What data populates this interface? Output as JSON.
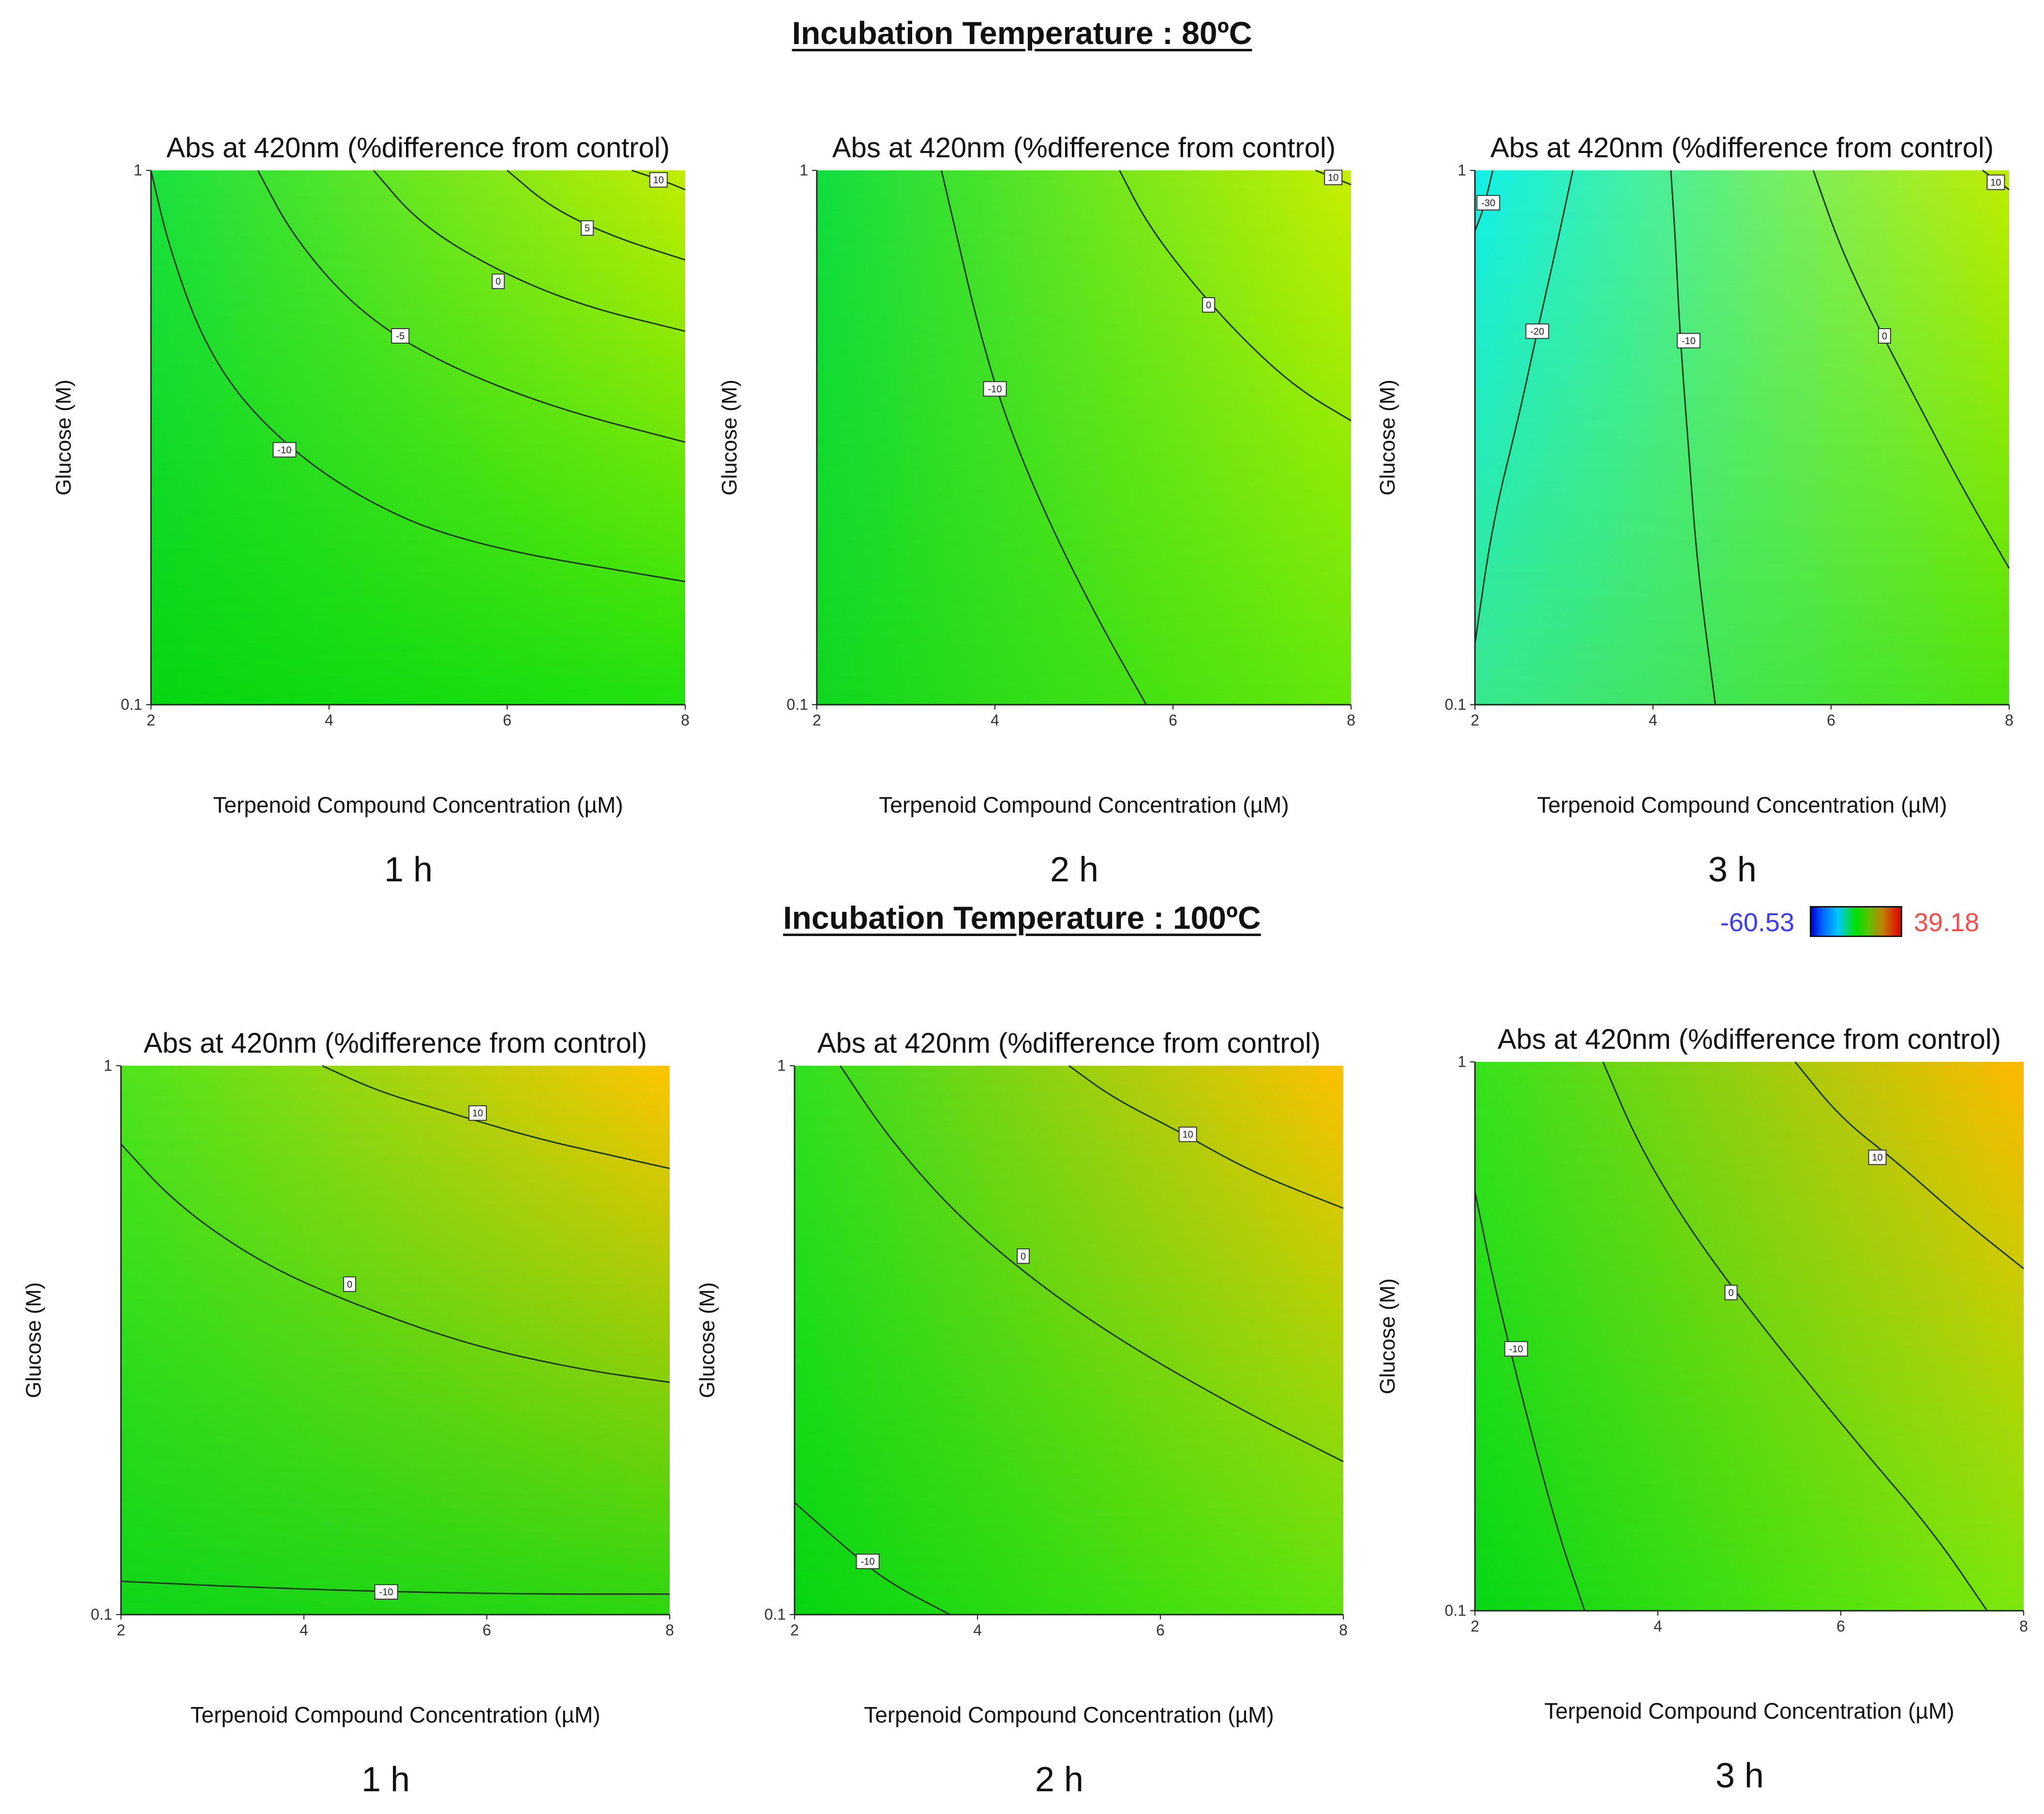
{
  "sections": [
    {
      "title": "Incubation Temperature : 80ºC"
    },
    {
      "title": "Incubation Temperature : 100ºC"
    }
  ],
  "legend": {
    "min_label": "-60.53",
    "max_label": "39.18",
    "min_value": -60.53,
    "max_value": 39.18,
    "colors": {
      "low": "#0000d6",
      "mid": "#00e000",
      "high": "#e00000"
    }
  },
  "chart_data": [
    {
      "type": "contour",
      "title": "Abs at 420nm (%difference from control)",
      "xlabel": "Terpenoid Compound Concentration (µM)",
      "ylabel": "Glucose (M)",
      "x_ticks": [
        "2",
        "4",
        "6",
        "8"
      ],
      "y_ticks": [
        "1",
        "0.1"
      ],
      "xlim": [
        2,
        8
      ],
      "ylim": [
        0.1,
        1
      ],
      "caption": "1 h",
      "temperature": "80ºC",
      "corner_colors": {
        "top_left": "#19e040",
        "top_right": "#c2ec00",
        "bottom_left": "#06d612",
        "bottom_right": "#22e20e"
      },
      "contours": [
        {
          "level": -10,
          "label": "-10",
          "points": [
            [
              2,
              1
            ],
            [
              2.2,
              0.72
            ],
            [
              2.6,
              0.47
            ],
            [
              3.2,
              0.34
            ],
            [
              4.2,
              0.25
            ],
            [
              5.5,
              0.2
            ],
            [
              8,
              0.17
            ]
          ],
          "label_at": [
            3.5,
            0.3
          ]
        },
        {
          "level": -5,
          "label": "-5",
          "points": [
            [
              3.2,
              1
            ],
            [
              3.6,
              0.75
            ],
            [
              4.3,
              0.55
            ],
            [
              5.2,
              0.44
            ],
            [
              6.5,
              0.36
            ],
            [
              8,
              0.31
            ]
          ],
          "label_at": [
            4.8,
            0.49
          ]
        },
        {
          "level": 0,
          "label": "0",
          "points": [
            [
              4.5,
              1
            ],
            [
              5.0,
              0.8
            ],
            [
              5.8,
              0.66
            ],
            [
              6.8,
              0.56
            ],
            [
              8,
              0.5
            ]
          ],
          "label_at": [
            5.9,
            0.62
          ]
        },
        {
          "level": 5,
          "label": "5",
          "points": [
            [
              6.0,
              1
            ],
            [
              6.5,
              0.85
            ],
            [
              7.2,
              0.75
            ],
            [
              8,
              0.68
            ]
          ],
          "label_at": [
            6.9,
            0.78
          ]
        },
        {
          "level": 10,
          "label": "10",
          "points": [
            [
              7.4,
              1
            ],
            [
              7.8,
              0.95
            ],
            [
              8,
              0.92
            ]
          ],
          "label_at": [
            7.7,
            0.96
          ]
        }
      ]
    },
    {
      "type": "contour",
      "title": "Abs at 420nm (%difference from control)",
      "xlabel": "Terpenoid Compound Concentration (µM)",
      "ylabel": "Glucose (M)",
      "x_ticks": [
        "2",
        "4",
        "6",
        "8"
      ],
      "y_ticks": [
        "1",
        "0.1"
      ],
      "xlim": [
        2,
        8
      ],
      "ylim": [
        0.1,
        1
      ],
      "caption": "2 h",
      "temperature": "80ºC",
      "corner_colors": {
        "top_left": "#10dd40",
        "top_right": "#c8ee00",
        "bottom_left": "#10d820",
        "bottom_right": "#66e80a"
      },
      "contours": [
        {
          "level": -10,
          "label": "-10",
          "points": [
            [
              3.4,
              1
            ],
            [
              3.6,
              0.72
            ],
            [
              3.8,
              0.52
            ],
            [
              4.1,
              0.35
            ],
            [
              4.6,
              0.22
            ],
            [
              5.2,
              0.14
            ],
            [
              5.7,
              0.1
            ]
          ],
          "label_at": [
            4.0,
            0.39
          ]
        },
        {
          "level": 0,
          "label": "0",
          "points": [
            [
              5.4,
              1
            ],
            [
              5.7,
              0.8
            ],
            [
              6.2,
              0.62
            ],
            [
              6.8,
              0.48
            ],
            [
              7.4,
              0.39
            ],
            [
              8,
              0.34
            ]
          ],
          "label_at": [
            6.4,
            0.56
          ]
        },
        {
          "level": 10,
          "label": "10",
          "points": [
            [
              7.6,
              1
            ],
            [
              7.8,
              0.97
            ],
            [
              8,
              0.94
            ]
          ],
          "label_at": [
            7.8,
            0.97
          ]
        }
      ]
    },
    {
      "type": "contour",
      "title": "Abs at 420nm (%difference from control)",
      "xlabel": "Terpenoid Compound Concentration (µM)",
      "ylabel": "Glucose (M)",
      "x_ticks": [
        "2",
        "4",
        "6",
        "8"
      ],
      "y_ticks": [
        "1",
        "0.1"
      ],
      "xlim": [
        2,
        8
      ],
      "ylim": [
        0.1,
        1
      ],
      "caption": "3 h",
      "temperature": "80ºC",
      "corner_colors": {
        "top_left": "#10f0e8",
        "top_right": "#c0ec00",
        "bottom_left": "#38e890",
        "bottom_right": "#4ee40c"
      },
      "contours": [
        {
          "level": -30,
          "label": "-30",
          "points": [
            [
              2.0,
              0.77
            ],
            [
              2.1,
              0.85
            ],
            [
              2.2,
              1
            ]
          ],
          "label_at": [
            2.15,
            0.87
          ]
        },
        {
          "level": -20,
          "label": "-20",
          "points": [
            [
              2.0,
              0.13
            ],
            [
              2.2,
              0.22
            ],
            [
              2.5,
              0.35
            ],
            [
              2.7,
              0.5
            ],
            [
              2.9,
              0.7
            ],
            [
              3.1,
              1
            ]
          ],
          "label_at": [
            2.7,
            0.5
          ]
        },
        {
          "level": -10,
          "label": "-10",
          "points": [
            [
              4.2,
              1
            ],
            [
              4.25,
              0.75
            ],
            [
              4.3,
              0.5
            ],
            [
              4.4,
              0.3
            ],
            [
              4.5,
              0.18
            ],
            [
              4.7,
              0.1
            ]
          ],
          "label_at": [
            4.4,
            0.48
          ]
        },
        {
          "level": 0,
          "label": "0",
          "points": [
            [
              5.8,
              1
            ],
            [
              6.1,
              0.72
            ],
            [
              6.5,
              0.52
            ],
            [
              7.0,
              0.36
            ],
            [
              7.5,
              0.25
            ],
            [
              8,
              0.18
            ]
          ],
          "label_at": [
            6.6,
            0.49
          ]
        },
        {
          "level": 10,
          "label": "10",
          "points": [
            [
              7.7,
              1
            ],
            [
              7.85,
              0.96
            ],
            [
              8,
              0.92
            ]
          ],
          "label_at": [
            7.85,
            0.95
          ]
        }
      ]
    },
    {
      "type": "contour",
      "title": "Abs at 420nm (%difference from control)",
      "xlabel": "Terpenoid Compound Concentration (µM)",
      "ylabel": "Glucose (M)",
      "x_ticks": [
        "2",
        "4",
        "6",
        "8"
      ],
      "y_ticks": [
        "1",
        "0.1"
      ],
      "xlim": [
        2,
        8
      ],
      "ylim": [
        0.1,
        1
      ],
      "caption": "1 h",
      "temperature": "100ºC",
      "corner_colors": {
        "top_left": "#4ee41c",
        "top_right": "#ffc400",
        "bottom_left": "#10d61a",
        "bottom_right": "#2ed810"
      },
      "contours": [
        {
          "level": -10,
          "label": "-10",
          "points": [
            [
              2,
              0.115
            ],
            [
              3.5,
              0.112
            ],
            [
              5,
              0.11
            ],
            [
              6.5,
              0.109
            ],
            [
              8,
              0.109
            ]
          ],
          "label_at": [
            4.9,
            0.11
          ]
        },
        {
          "level": 0,
          "label": "0",
          "points": [
            [
              2,
              0.72
            ],
            [
              2.6,
              0.56
            ],
            [
              3.5,
              0.44
            ],
            [
              4.5,
              0.37
            ],
            [
              5.8,
              0.31
            ],
            [
              7,
              0.28
            ],
            [
              8,
              0.265
            ]
          ],
          "label_at": [
            4.5,
            0.4
          ]
        },
        {
          "level": 10,
          "label": "10",
          "points": [
            [
              4.2,
              1
            ],
            [
              4.8,
              0.9
            ],
            [
              5.5,
              0.83
            ],
            [
              6.5,
              0.74
            ],
            [
              7.3,
              0.69
            ],
            [
              8,
              0.65
            ]
          ],
          "label_at": [
            5.9,
            0.82
          ]
        }
      ]
    },
    {
      "type": "contour",
      "title": "Abs at 420nm (%difference from control)",
      "xlabel": "Terpenoid Compound Concentration (µM)",
      "ylabel": "Glucose (M)",
      "x_ticks": [
        "2",
        "4",
        "6",
        "8"
      ],
      "y_ticks": [
        "1",
        "0.1"
      ],
      "xlim": [
        2,
        8
      ],
      "ylim": [
        0.1,
        1
      ],
      "caption": "2 h",
      "temperature": "100ºC",
      "corner_colors": {
        "top_left": "#2ee020",
        "top_right": "#ffc000",
        "bottom_left": "#06d612",
        "bottom_right": "#60e40e"
      },
      "contours": [
        {
          "level": -10,
          "label": "-10",
          "points": [
            [
              2,
              0.16
            ],
            [
              2.5,
              0.135
            ],
            [
              3.0,
              0.115
            ],
            [
              3.7,
              0.1
            ]
          ],
          "label_at": [
            2.8,
            0.125
          ]
        },
        {
          "level": 0,
          "label": "0",
          "points": [
            [
              2.5,
              1
            ],
            [
              3.0,
              0.75
            ],
            [
              3.7,
              0.55
            ],
            [
              4.5,
              0.42
            ],
            [
              5.5,
              0.32
            ],
            [
              6.8,
              0.24
            ],
            [
              8,
              0.19
            ]
          ],
          "label_at": [
            4.5,
            0.45
          ]
        },
        {
          "level": 10,
          "label": "10",
          "points": [
            [
              5.0,
              1
            ],
            [
              5.5,
              0.87
            ],
            [
              6.2,
              0.76
            ],
            [
              7,
              0.64
            ],
            [
              8,
              0.55
            ]
          ],
          "label_at": [
            6.3,
            0.75
          ]
        }
      ]
    },
    {
      "type": "contour",
      "title": "Abs at 420nm (%difference from control)",
      "xlabel": "Terpenoid Compound Concentration (µM)",
      "ylabel": "Glucose (M)",
      "x_ticks": [
        "2",
        "4",
        "6",
        "8"
      ],
      "y_ticks": [
        "1",
        "0.1"
      ],
      "xlim": [
        2,
        8
      ],
      "ylim": [
        0.1,
        1
      ],
      "caption": "3 h",
      "temperature": "100ºC",
      "corner_colors": {
        "top_left": "#36e21c",
        "top_right": "#ffb800",
        "bottom_left": "#06d816",
        "bottom_right": "#7ee80c"
      },
      "contours": [
        {
          "level": -10,
          "label": "-10",
          "points": [
            [
              2,
              0.58
            ],
            [
              2.2,
              0.4
            ],
            [
              2.5,
              0.25
            ],
            [
              2.9,
              0.14
            ],
            [
              3.2,
              0.1
            ]
          ],
          "label_at": [
            2.45,
            0.3
          ]
        },
        {
          "level": 0,
          "label": "0",
          "points": [
            [
              3.4,
              1
            ],
            [
              3.8,
              0.7
            ],
            [
              4.4,
              0.48
            ],
            [
              5.2,
              0.32
            ],
            [
              6.2,
              0.2
            ],
            [
              7,
              0.14
            ],
            [
              7.6,
              0.1
            ]
          ],
          "label_at": [
            4.8,
            0.38
          ]
        },
        {
          "level": 10,
          "label": "10",
          "points": [
            [
              5.5,
              1
            ],
            [
              6.0,
              0.79
            ],
            [
              6.6,
              0.66
            ],
            [
              7.3,
              0.52
            ],
            [
              8,
              0.42
            ]
          ],
          "label_at": [
            6.4,
            0.67
          ]
        }
      ]
    }
  ]
}
